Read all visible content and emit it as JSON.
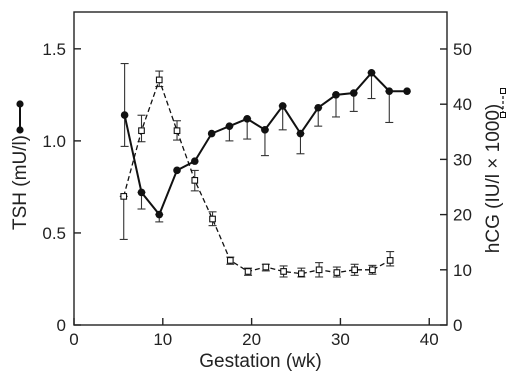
{
  "chart_data": {
    "type": "line",
    "xlabel": "Gestation (wk)",
    "ylabel_left": "TSH (mU/l)",
    "ylabel_right": "hCG (IU/l × 1000)",
    "x_ticks": [
      0,
      10,
      20,
      30,
      40
    ],
    "x_tick_labels": [
      "0",
      "10",
      "20",
      "30",
      "40"
    ],
    "y_left_ticks": [
      0,
      0.5,
      1.0,
      1.5
    ],
    "y_left_tick_labels": [
      "0",
      "0.5",
      "1.0",
      "1.5"
    ],
    "y_right_ticks": [
      0,
      10,
      20,
      30,
      40,
      50
    ],
    "y_right_tick_labels": [
      "0",
      "10",
      "20",
      "30",
      "40",
      "50"
    ],
    "xlim": [
      0,
      42
    ],
    "ylim_left": [
      0,
      1.7
    ],
    "ylim_right": [
      0,
      56.7
    ],
    "grid": false,
    "series": [
      {
        "axis": "left",
        "marker": "filled-circle",
        "line_style": "solid",
        "color": "#111111",
        "x": [
          5.7,
          7.6,
          9.6,
          11.6,
          13.6,
          15.5,
          17.5,
          19.5,
          21.5,
          23.5,
          25.5,
          27.5,
          29.5,
          31.5,
          33.5,
          35.5,
          37.5
        ],
        "y": [
          1.14,
          0.72,
          0.6,
          0.84,
          0.89,
          1.04,
          1.08,
          1.12,
          1.06,
          1.19,
          1.04,
          1.18,
          1.25,
          1.26,
          1.37,
          1.27,
          1.27
        ],
        "err_up": [
          1.42,
          0.72,
          0.6,
          0.84,
          0.89,
          1.04,
          1.08,
          1.12,
          1.06,
          1.19,
          1.04,
          1.18,
          1.25,
          1.26,
          1.37,
          1.27,
          1.27
        ],
        "err_down": [
          0.97,
          0.63,
          0.56,
          0.84,
          0.89,
          1.04,
          1.0,
          1.01,
          0.92,
          1.06,
          0.93,
          1.08,
          1.13,
          1.16,
          1.23,
          1.1,
          1.27
        ]
      },
      {
        "axis": "right",
        "marker": "open-square",
        "line_style": "dashed",
        "color": "#111111",
        "x": [
          5.6,
          7.6,
          9.6,
          11.6,
          13.6,
          15.6,
          17.6,
          19.6,
          21.6,
          23.6,
          25.6,
          27.6,
          29.6,
          31.6,
          33.6,
          35.6
        ],
        "y": [
          23.3,
          35.2,
          44.4,
          35.2,
          26.2,
          19.2,
          11.7,
          9.7,
          10.5,
          9.7,
          9.3,
          10.0,
          9.5,
          10.0,
          10.0,
          11.7
        ],
        "err_up": [
          23.3,
          38.0,
          46.0,
          37.0,
          28.0,
          20.5,
          12.3,
          10.3,
          11.0,
          10.7,
          10.3,
          11.3,
          10.5,
          11.0,
          10.8,
          13.3
        ],
        "err_down": [
          15.5,
          33.2,
          43.2,
          33.5,
          24.3,
          18.0,
          11.0,
          9.0,
          9.8,
          8.7,
          8.7,
          8.7,
          8.7,
          9.0,
          9.2,
          10.7
        ]
      }
    ]
  }
}
